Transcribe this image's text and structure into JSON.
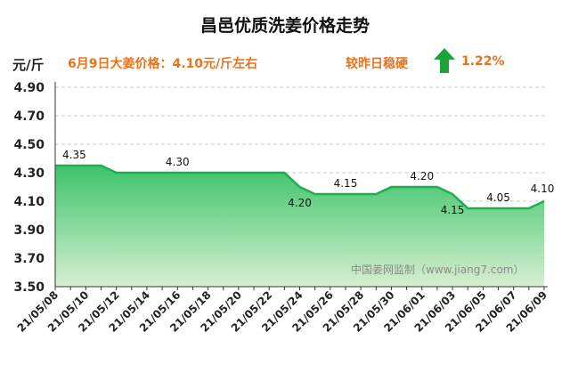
{
  "header": {
    "title": "昌邑优质洗姜价格走势",
    "unit": "元/斤",
    "price_info": "6月9日大姜价格：4.10元/斤左右",
    "trend": "较昨日稳硬",
    "trend_pct": "1.22%",
    "arrow_icon": "up-arrow-icon"
  },
  "watermark": "中国姜网监制（www.jiang7.com）",
  "colors": {
    "accent": "#e8731d",
    "arrow": "#1aa33a",
    "line": "#1fae4e",
    "fill_top": "#3cc46a",
    "fill_bottom": "#d7efd1"
  },
  "chart_data": {
    "type": "area",
    "title": "昌邑优质洗姜价格走势",
    "ylabel": "元/斤",
    "ylim": [
      3.5,
      4.9
    ],
    "yticks": [
      "3.50",
      "3.70",
      "3.90",
      "4.10",
      "4.30",
      "4.50",
      "4.70",
      "4.90"
    ],
    "grid": true,
    "x": [
      "21/05/08",
      "21/05/09",
      "21/05/10",
      "21/05/11",
      "21/05/12",
      "21/05/13",
      "21/05/14",
      "21/05/15",
      "21/05/16",
      "21/05/17",
      "21/05/18",
      "21/05/19",
      "21/05/20",
      "21/05/21",
      "21/05/22",
      "21/05/23",
      "21/05/24",
      "21/05/25",
      "21/05/26",
      "21/05/27",
      "21/05/28",
      "21/05/29",
      "21/05/30",
      "21/05/31",
      "21/06/01",
      "21/06/02",
      "21/06/03",
      "21/06/04",
      "21/06/05",
      "21/06/06",
      "21/06/07",
      "21/06/08",
      "21/06/09"
    ],
    "y": [
      4.35,
      4.35,
      4.35,
      4.35,
      4.3,
      4.3,
      4.3,
      4.3,
      4.3,
      4.3,
      4.3,
      4.3,
      4.3,
      4.3,
      4.3,
      4.3,
      4.2,
      4.15,
      4.15,
      4.15,
      4.15,
      4.15,
      4.2,
      4.2,
      4.2,
      4.2,
      4.15,
      4.05,
      4.05,
      4.05,
      4.05,
      4.05,
      4.1
    ],
    "xtick_labels": [
      "21/05/08",
      "21/05/10",
      "21/05/12",
      "21/05/14",
      "21/05/16",
      "21/05/18",
      "21/05/20",
      "21/05/22",
      "21/05/24",
      "21/05/26",
      "21/05/28",
      "21/05/30",
      "21/06/01",
      "21/06/03",
      "21/06/05",
      "21/06/07",
      "21/06/09"
    ],
    "data_labels": [
      {
        "x": "21/05/08",
        "text": "4.35"
      },
      {
        "x": "21/05/16",
        "text": "4.30"
      },
      {
        "x": "21/05/24",
        "text": "4.20"
      },
      {
        "x": "21/05/27",
        "text": "4.15"
      },
      {
        "x": "21/06/01",
        "text": "4.20"
      },
      {
        "x": "21/06/03",
        "text": "4.15"
      },
      {
        "x": "21/06/06",
        "text": "4.05"
      },
      {
        "x": "21/06/09",
        "text": "4.10"
      }
    ]
  }
}
